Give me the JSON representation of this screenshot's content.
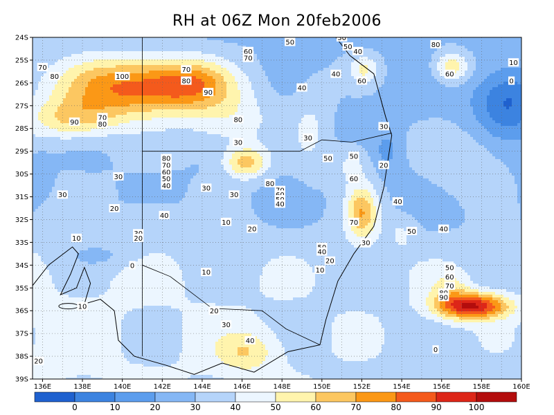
{
  "title": "RH at 06Z Mon 20feb2006",
  "map": {
    "lat_ticks": [
      "24S",
      "25S",
      "26S",
      "27S",
      "28S",
      "29S",
      "30S",
      "31S",
      "32S",
      "33S",
      "34S",
      "35S",
      "36S",
      "37S",
      "38S",
      "39S"
    ],
    "lon_ticks": [
      "136E",
      "138E",
      "140E",
      "142E",
      "144E",
      "146E",
      "148E",
      "150E",
      "152E",
      "154E",
      "156E",
      "158E",
      "160E"
    ],
    "lat_range": [
      -39,
      -24
    ],
    "lon_range": [
      135.5,
      160
    ],
    "contour_labels": [
      {
        "v": "70",
        "lon": 136.0,
        "lat": -25.3
      },
      {
        "v": "80",
        "lon": 136.6,
        "lat": -25.7
      },
      {
        "v": "100",
        "lon": 140.0,
        "lat": -25.7
      },
      {
        "v": "90",
        "lon": 137.6,
        "lat": -27.7
      },
      {
        "v": "70",
        "lon": 139.0,
        "lat": -27.5
      },
      {
        "v": "80",
        "lon": 139.0,
        "lat": -27.8
      },
      {
        "v": "70",
        "lon": 143.2,
        "lat": -25.4
      },
      {
        "v": "80",
        "lon": 143.2,
        "lat": -25.9
      },
      {
        "v": "90",
        "lon": 144.3,
        "lat": -26.4
      },
      {
        "v": "80",
        "lon": 145.8,
        "lat": -27.6
      },
      {
        "v": "30",
        "lon": 145.8,
        "lat": -28.6
      },
      {
        "v": "60",
        "lon": 146.3,
        "lat": -24.6
      },
      {
        "v": "70",
        "lon": 146.3,
        "lat": -24.9
      },
      {
        "v": "50",
        "lon": 148.4,
        "lat": -24.2
      },
      {
        "v": "30",
        "lon": 151.0,
        "lat": -24.0
      },
      {
        "v": "50",
        "lon": 151.3,
        "lat": -24.4
      },
      {
        "v": "40",
        "lon": 151.8,
        "lat": -24.6
      },
      {
        "v": "40",
        "lon": 150.7,
        "lat": -25.6
      },
      {
        "v": "60",
        "lon": 152.0,
        "lat": -25.9
      },
      {
        "v": "40",
        "lon": 149.0,
        "lat": -26.2
      },
      {
        "v": "80",
        "lon": 155.7,
        "lat": -24.3
      },
      {
        "v": "60",
        "lon": 156.4,
        "lat": -25.6
      },
      {
        "v": "10",
        "lon": 159.6,
        "lat": -25.1
      },
      {
        "v": "0",
        "lon": 159.5,
        "lat": -25.9
      },
      {
        "v": "30",
        "lon": 153.1,
        "lat": -27.9
      },
      {
        "v": "20",
        "lon": 153.1,
        "lat": -29.6
      },
      {
        "v": "30",
        "lon": 149.3,
        "lat": -28.4
      },
      {
        "v": "50",
        "lon": 150.3,
        "lat": -29.3
      },
      {
        "v": "50",
        "lon": 151.6,
        "lat": -29.2
      },
      {
        "v": "60",
        "lon": 151.6,
        "lat": -30.2
      },
      {
        "v": "70",
        "lon": 151.6,
        "lat": -32.1
      },
      {
        "v": "40",
        "lon": 153.8,
        "lat": -31.2
      },
      {
        "v": "50",
        "lon": 154.5,
        "lat": -32.5
      },
      {
        "v": "40",
        "lon": 156.1,
        "lat": -32.4
      },
      {
        "v": "30",
        "lon": 152.2,
        "lat": -33.0
      },
      {
        "v": "50",
        "lon": 150.0,
        "lat": -33.2
      },
      {
        "v": "40",
        "lon": 150.0,
        "lat": -33.4
      },
      {
        "v": "20",
        "lon": 150.4,
        "lat": -33.8
      },
      {
        "v": "10",
        "lon": 149.9,
        "lat": -34.2
      },
      {
        "v": "80",
        "lon": 142.2,
        "lat": -29.3
      },
      {
        "v": "70",
        "lon": 142.2,
        "lat": -29.6
      },
      {
        "v": "60",
        "lon": 142.2,
        "lat": -29.9
      },
      {
        "v": "50",
        "lon": 142.2,
        "lat": -30.2
      },
      {
        "v": "40",
        "lon": 142.2,
        "lat": -30.5
      },
      {
        "v": "80",
        "lon": 147.4,
        "lat": -30.4
      },
      {
        "v": "70",
        "lon": 147.9,
        "lat": -30.7
      },
      {
        "v": "60",
        "lon": 147.9,
        "lat": -30.9
      },
      {
        "v": "50",
        "lon": 147.9,
        "lat": -31.1
      },
      {
        "v": "40",
        "lon": 147.9,
        "lat": -31.3
      },
      {
        "v": "30",
        "lon": 139.8,
        "lat": -30.1
      },
      {
        "v": "30",
        "lon": 137.0,
        "lat": -30.9
      },
      {
        "v": "20",
        "lon": 139.6,
        "lat": -31.5
      },
      {
        "v": "30",
        "lon": 144.2,
        "lat": -30.6
      },
      {
        "v": "30",
        "lon": 145.6,
        "lat": -30.9
      },
      {
        "v": "40",
        "lon": 142.1,
        "lat": -31.8
      },
      {
        "v": "30",
        "lon": 140.8,
        "lat": -32.6
      },
      {
        "v": "20",
        "lon": 140.8,
        "lat": -32.8
      },
      {
        "v": "10",
        "lon": 145.2,
        "lat": -32.1
      },
      {
        "v": "20",
        "lon": 146.5,
        "lat": -32.4
      },
      {
        "v": "10",
        "lon": 137.7,
        "lat": -32.8
      },
      {
        "v": "0",
        "lon": 140.5,
        "lat": -34.0
      },
      {
        "v": "10",
        "lon": 144.2,
        "lat": -34.3
      },
      {
        "v": "10",
        "lon": 138.0,
        "lat": -35.8
      },
      {
        "v": "20",
        "lon": 144.6,
        "lat": -36.0
      },
      {
        "v": "30",
        "lon": 145.2,
        "lat": -36.6
      },
      {
        "v": "40",
        "lon": 146.4,
        "lat": -37.3
      },
      {
        "v": "20",
        "lon": 135.8,
        "lat": -38.2
      },
      {
        "v": "50",
        "lon": 156.4,
        "lat": -34.1
      },
      {
        "v": "60",
        "lon": 156.4,
        "lat": -34.5
      },
      {
        "v": "70",
        "lon": 156.4,
        "lat": -34.9
      },
      {
        "v": "80",
        "lon": 156.1,
        "lat": -35.2
      },
      {
        "v": "90",
        "lon": 156.1,
        "lat": -35.4
      },
      {
        "v": "0",
        "lon": 155.7,
        "lat": -37.7
      }
    ]
  },
  "colorbar": {
    "labels": [
      "0",
      "10",
      "20",
      "30",
      "40",
      "50",
      "60",
      "70",
      "80",
      "90",
      "100"
    ],
    "colors": [
      "#1f61cf",
      "#3c83e0",
      "#5c9ded",
      "#85b7f5",
      "#b5d4fa",
      "#ecf6ff",
      "#fff4ad",
      "#fcc761",
      "#fb9816",
      "#f45a1c",
      "#dd2618",
      "#b30d0d"
    ]
  }
}
